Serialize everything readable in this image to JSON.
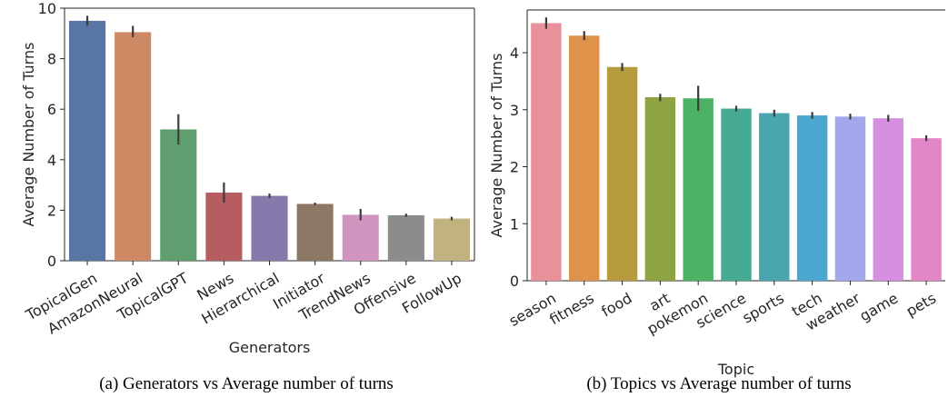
{
  "chart_data": [
    {
      "type": "bar",
      "caption": "(a) Generators vs Average number of turns",
      "title": "",
      "xlabel": "Generators",
      "ylabel": "Average Number of Turns",
      "ylim": [
        0,
        10
      ],
      "yticks": [
        0,
        2,
        4,
        6,
        8,
        10
      ],
      "grid": false,
      "categories": [
        "TopicalGen",
        "AmazonNeural",
        "TopicalGPT",
        "News",
        "Hierarchical",
        "Initiator",
        "TrendNews",
        "Offensive",
        "FollowUp"
      ],
      "values": [
        9.5,
        9.05,
        5.2,
        2.7,
        2.57,
        2.25,
        1.82,
        1.8,
        1.67
      ],
      "error_low": [
        9.3,
        8.85,
        4.6,
        2.3,
        2.48,
        2.2,
        1.6,
        1.74,
        1.6
      ],
      "error_high": [
        9.7,
        9.3,
        5.8,
        3.1,
        2.66,
        2.3,
        2.05,
        1.86,
        1.74
      ],
      "colors": [
        "#5975a4",
        "#cc8963",
        "#5f9e6e",
        "#b55d60",
        "#857aab",
        "#8d7866",
        "#d095bf",
        "#8c8c8c",
        "#c1b37f"
      ]
    },
    {
      "type": "bar",
      "caption": "(b) Topics vs Average number of turns",
      "title": "",
      "xlabel": "Topic",
      "ylabel": "Average Number of Turns",
      "ylim": [
        0,
        4.75
      ],
      "yticks": [
        0,
        1,
        2,
        3,
        4
      ],
      "grid": false,
      "categories": [
        "season",
        "fitness",
        "food",
        "art",
        "pokemon",
        "science",
        "sports",
        "tech",
        "weather",
        "game",
        "pets"
      ],
      "values": [
        4.52,
        4.3,
        3.75,
        3.22,
        3.2,
        3.02,
        2.94,
        2.9,
        2.88,
        2.85,
        2.5
      ],
      "error_low": [
        4.42,
        4.22,
        3.68,
        3.15,
        2.98,
        2.97,
        2.88,
        2.84,
        2.83,
        2.79,
        2.45
      ],
      "error_high": [
        4.62,
        4.38,
        3.82,
        3.28,
        3.42,
        3.07,
        3.0,
        2.96,
        2.93,
        2.91,
        2.55
      ],
      "colors": [
        "#e8919b",
        "#df924a",
        "#b69a3e",
        "#8ea444",
        "#4db266",
        "#47ab94",
        "#49a5ae",
        "#4aa7d0",
        "#a3a7eb",
        "#d68fe1",
        "#e286c7"
      ]
    }
  ]
}
